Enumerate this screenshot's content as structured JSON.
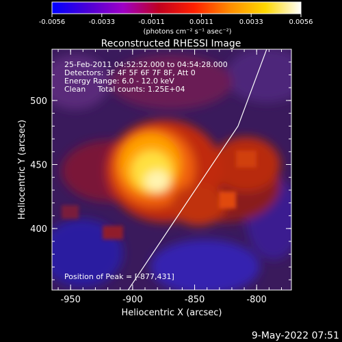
{
  "colorbar": {
    "tick_labels": [
      "-0.0056",
      "-0.0033",
      "-0.0011",
      "0.0011",
      "0.0033",
      "0.0056"
    ],
    "unit_label": "(photons cm⁻² s⁻¹ asec⁻²)",
    "colormap": [
      "#0000ff",
      "#4b00d6",
      "#9e00c5",
      "#c00020",
      "#ff2000",
      "#ff8c00",
      "#ffd800",
      "#ffffff"
    ]
  },
  "image": {
    "title": "Reconstructed RHESSI Image",
    "info_lines": [
      "25-Feb-2011 04:52:52.000 to 04:54:28.000",
      "Detectors: 3F 4F 5F 6F 7F 8F, Att 0",
      "Energy Range: 6.0 - 12.0 keV",
      "Clean     Total counts: 1.25E+04"
    ],
    "peak_text": "Position of Peak = [-877,431]",
    "x_axis": {
      "label": "Heliocentric X (arcsec)",
      "tick_labels": [
        "-950",
        "-900",
        "-850",
        "-800"
      ],
      "range": [
        -965,
        -772
      ]
    },
    "y_axis": {
      "label": "Heliocentric Y (arcsec)",
      "tick_labels": [
        "400",
        "450",
        "500"
      ],
      "range": [
        352,
        540
      ]
    },
    "peak_position": [
      -877,
      431
    ],
    "limb_line": [
      [
        -905,
        350
      ],
      [
        -815,
        480
      ],
      [
        -790,
        545
      ]
    ]
  },
  "timestamp": "9-May-2022 07:51"
}
